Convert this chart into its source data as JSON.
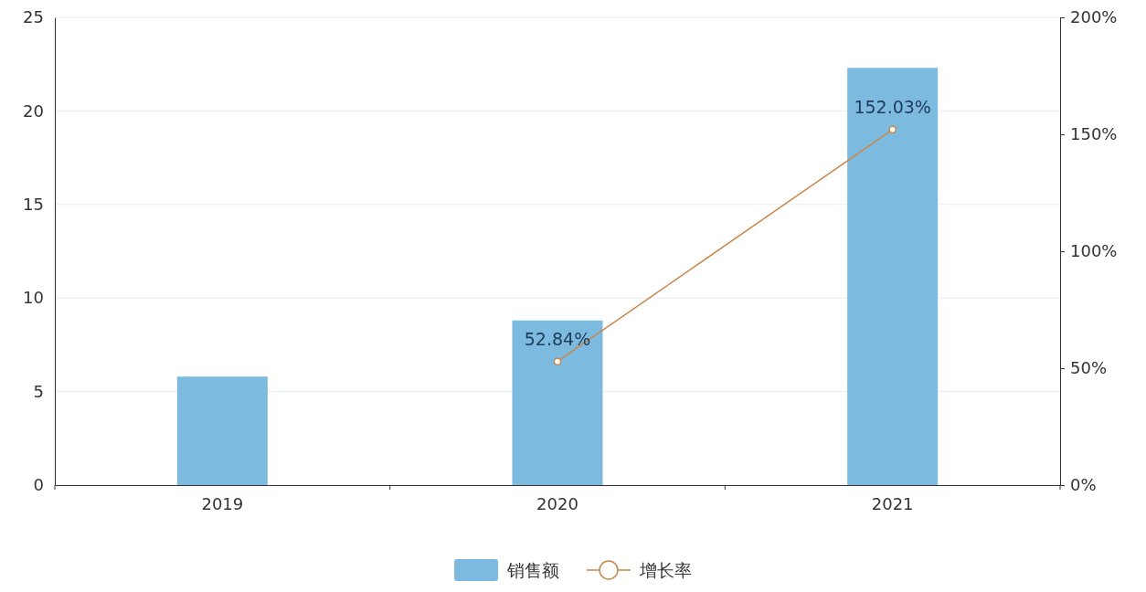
{
  "chart_data": {
    "type": "bar",
    "categories": [
      "2019",
      "2020",
      "2021"
    ],
    "series": [
      {
        "name": "销售额",
        "color": "#7dbadf",
        "values": [
          5.8,
          8.8,
          22.3
        ]
      },
      {
        "name": "增长率",
        "type": "line",
        "axis": "y2",
        "color": "#c8864a",
        "values": [
          null,
          52.84,
          152.03
        ],
        "value_labels": [
          null,
          "52.84%",
          "152.03%"
        ]
      }
    ],
    "ylim": [
      0,
      25
    ],
    "yticks": [
      0,
      5,
      10,
      15,
      20,
      25
    ],
    "y2lim": [
      0,
      200
    ],
    "y2ticks": [
      {
        "value": 0,
        "label": "0%"
      },
      {
        "value": 50,
        "label": "50%"
      },
      {
        "value": 100,
        "label": "100%"
      },
      {
        "value": 150,
        "label": "150%"
      },
      {
        "value": 200,
        "label": "200%"
      }
    ],
    "grid": "y",
    "legend": "bottom",
    "marker": "circle"
  }
}
